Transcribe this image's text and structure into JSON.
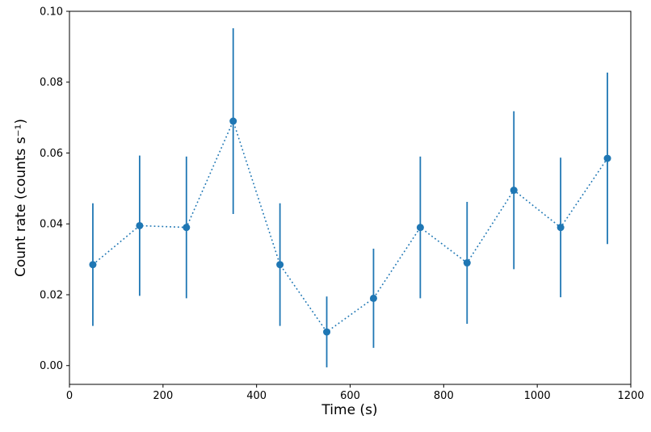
{
  "figure": {
    "background": "#ffffff"
  },
  "chart_data": {
    "type": "line",
    "title": "",
    "xlabel": "Time (s)",
    "ylabel": "Count rate (counts s⁻¹)",
    "series": [
      {
        "name": "count-rate",
        "x": [
          50,
          150,
          250,
          350,
          450,
          550,
          650,
          750,
          850,
          950,
          1050,
          1150
        ],
        "y": [
          0.0285,
          0.0395,
          0.039,
          0.069,
          0.0285,
          0.0095,
          0.019,
          0.039,
          0.029,
          0.0495,
          0.039,
          0.0585
        ],
        "yerr": [
          0.0173,
          0.0198,
          0.02,
          0.0262,
          0.0173,
          0.01,
          0.014,
          0.02,
          0.0172,
          0.0223,
          0.0197,
          0.0242
        ]
      }
    ],
    "xlim": [
      0,
      1200
    ],
    "ylim": [
      -0.0053,
      0.1
    ],
    "xticks": [
      0,
      200,
      400,
      600,
      800,
      1000,
      1200
    ],
    "xtick_labels": [
      "0",
      "200",
      "400",
      "600",
      "800",
      "1000",
      "1200"
    ],
    "yticks": [
      0,
      0.02,
      0.04,
      0.06,
      0.08,
      0.1
    ],
    "ytick_labels": [
      "0.00",
      "0.02",
      "0.04",
      "0.06",
      "0.08",
      "0.10"
    ],
    "line_style": "dotted",
    "marker": "circle",
    "color": "#1f77b4",
    "grid": false,
    "legend": null
  }
}
